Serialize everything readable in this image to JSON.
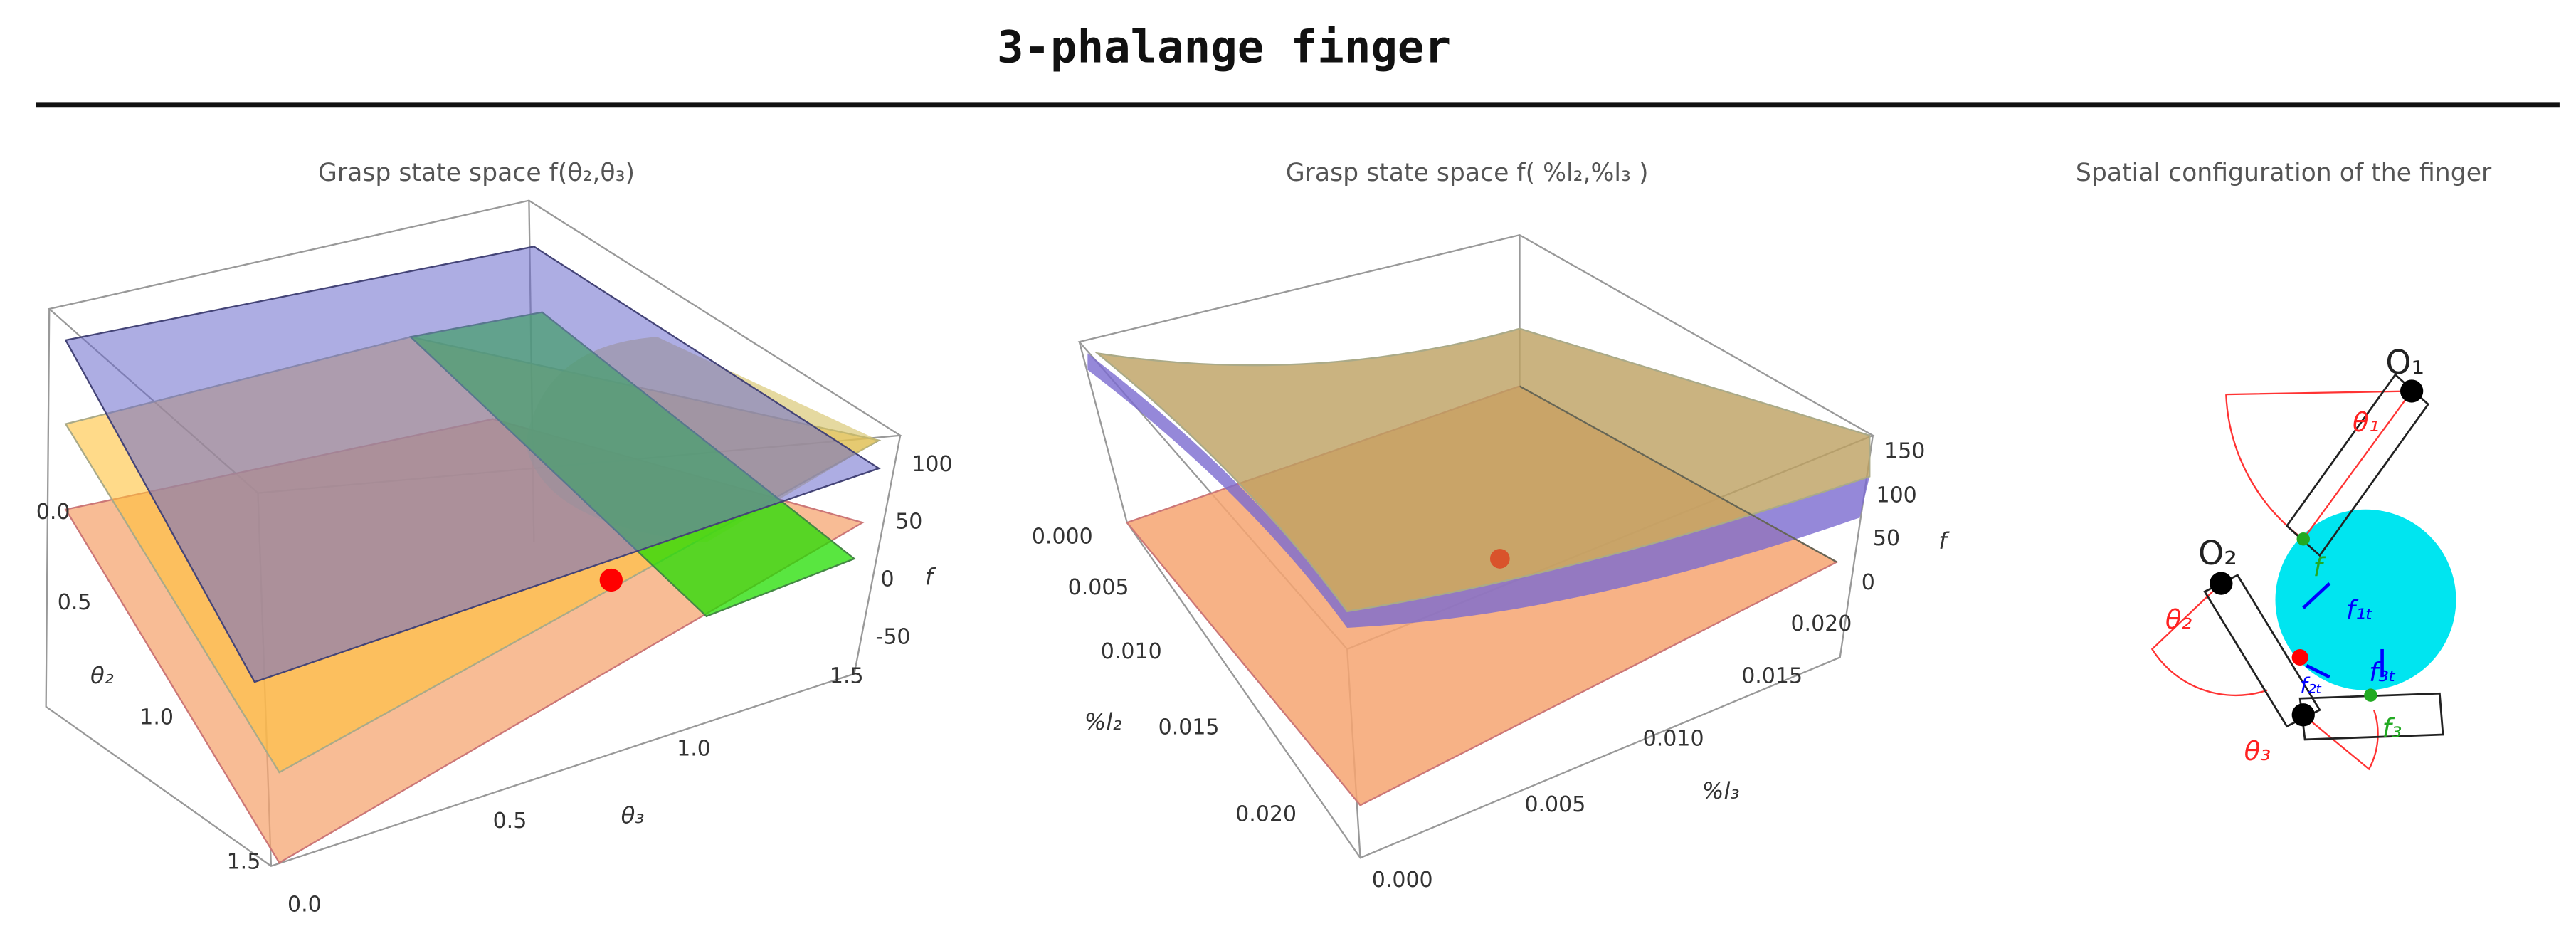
{
  "header": {
    "title": "3-phalange finger"
  },
  "panels": [
    {
      "title": "Grasp state space f(θ₂,θ₃)",
      "axes": [
        {
          "label": "θ₂",
          "ticks": [
            "0.0",
            "0.5",
            "1.0",
            "1.5"
          ]
        },
        {
          "label": "θ₃",
          "ticks": [
            "0.0",
            "0.5",
            "1.0",
            "1.5"
          ]
        },
        {
          "label": "f",
          "ticks": [
            "-50",
            "0",
            "50",
            "100"
          ]
        }
      ]
    },
    {
      "title": "Grasp state space f( %l₂,%l₃ )",
      "axes": [
        {
          "label": "%l₂",
          "ticks": [
            "0.000",
            "0.005",
            "0.010",
            "0.015",
            "0.020"
          ]
        },
        {
          "label": "%l₃",
          "ticks": [
            "0.000",
            "0.005",
            "0.010",
            "0.015",
            "0.020"
          ]
        },
        {
          "label": "f",
          "ticks": [
            "0",
            "50",
            "100",
            "150"
          ]
        }
      ]
    },
    {
      "title": "Spatial configuration of the finger",
      "labels": [
        "O₁",
        "θ₁",
        "O₂",
        "θ₂",
        "θ₃",
        "f",
        "f₁ₜ",
        "f₂ₜ",
        "f₃ₜ",
        "f₃"
      ]
    }
  ]
}
